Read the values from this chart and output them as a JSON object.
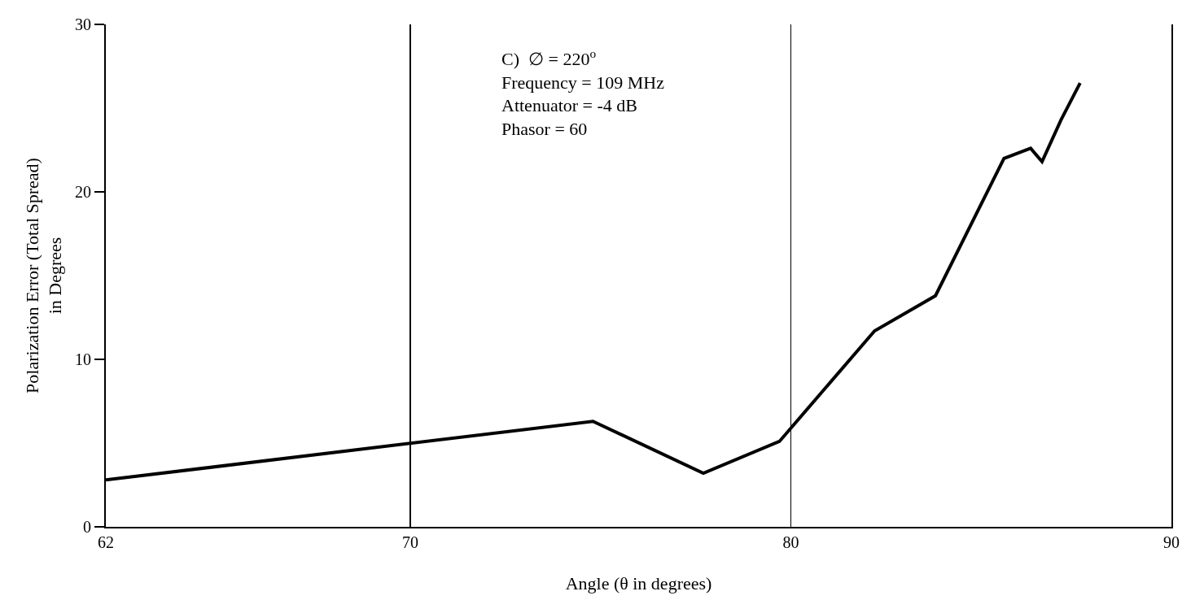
{
  "chart_data": {
    "type": "line",
    "xlabel": "Angle (θ in degrees)",
    "ylabel": "Polarization Error (Total Spread)\nin Degrees",
    "annotations": [
      "C)  ∅ = 220$^{o}$\nFrequency = 109 MHz\nAttenuator = -4 dB\nPhasor = 60"
    ],
    "x": [
      62,
      74.8,
      77.7,
      79.7,
      82.2,
      83.8,
      85.6,
      86.3,
      86.6,
      87.1,
      87.6
    ],
    "series": [
      {
        "color": "#000000",
        "values": [
          2.8,
          6.3,
          3.2,
          5.1,
          11.7,
          13.8,
          22.0,
          22.6,
          21.8,
          24.3,
          26.5
        ]
      }
    ],
    "xlim": [
      62,
      90
    ],
    "xticks": [
      62,
      70,
      80,
      90
    ],
    "ylim": [
      0,
      30
    ],
    "yticks": [
      0,
      10,
      20,
      30
    ],
    "grid": "x",
    "marker": "none",
    "line_style": "solid"
  }
}
